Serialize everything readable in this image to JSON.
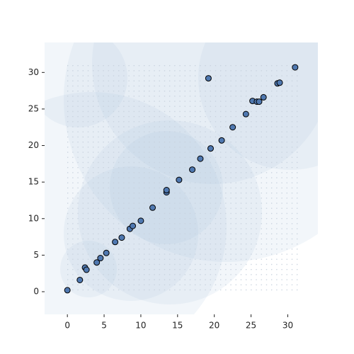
{
  "chart_data": {
    "type": "scatter",
    "color": "#4f78b0",
    "edgecolor": "#000000",
    "x": [
      0,
      1.7,
      2.4,
      2.6,
      4.0,
      4.5,
      5.3,
      6.5,
      7.4,
      8.5,
      8.9,
      10.0,
      11.6,
      13.5,
      13.5,
      15.2,
      17.0,
      18.1,
      19.2,
      19.5,
      21.0,
      22.5,
      24.3,
      25.2,
      25.8,
      26.1,
      26.7,
      28.6,
      28.9,
      31.0
    ],
    "y": [
      0.2,
      1.6,
      3.3,
      3.0,
      4.0,
      4.6,
      5.3,
      6.8,
      7.4,
      8.6,
      9.0,
      9.7,
      11.5,
      13.6,
      13.9,
      15.3,
      16.7,
      18.2,
      29.2,
      19.6,
      20.7,
      22.5,
      24.3,
      26.1,
      26.0,
      26.0,
      26.6,
      28.5,
      28.6,
      30.7
    ],
    "xlim": [
      -3.1,
      34.1
    ],
    "ylim": [
      -3.1,
      34.1
    ],
    "xticks": [
      0,
      5,
      10,
      15,
      20,
      25,
      30
    ],
    "yticks": [
      0,
      5,
      10,
      15,
      20,
      25,
      30
    ]
  }
}
